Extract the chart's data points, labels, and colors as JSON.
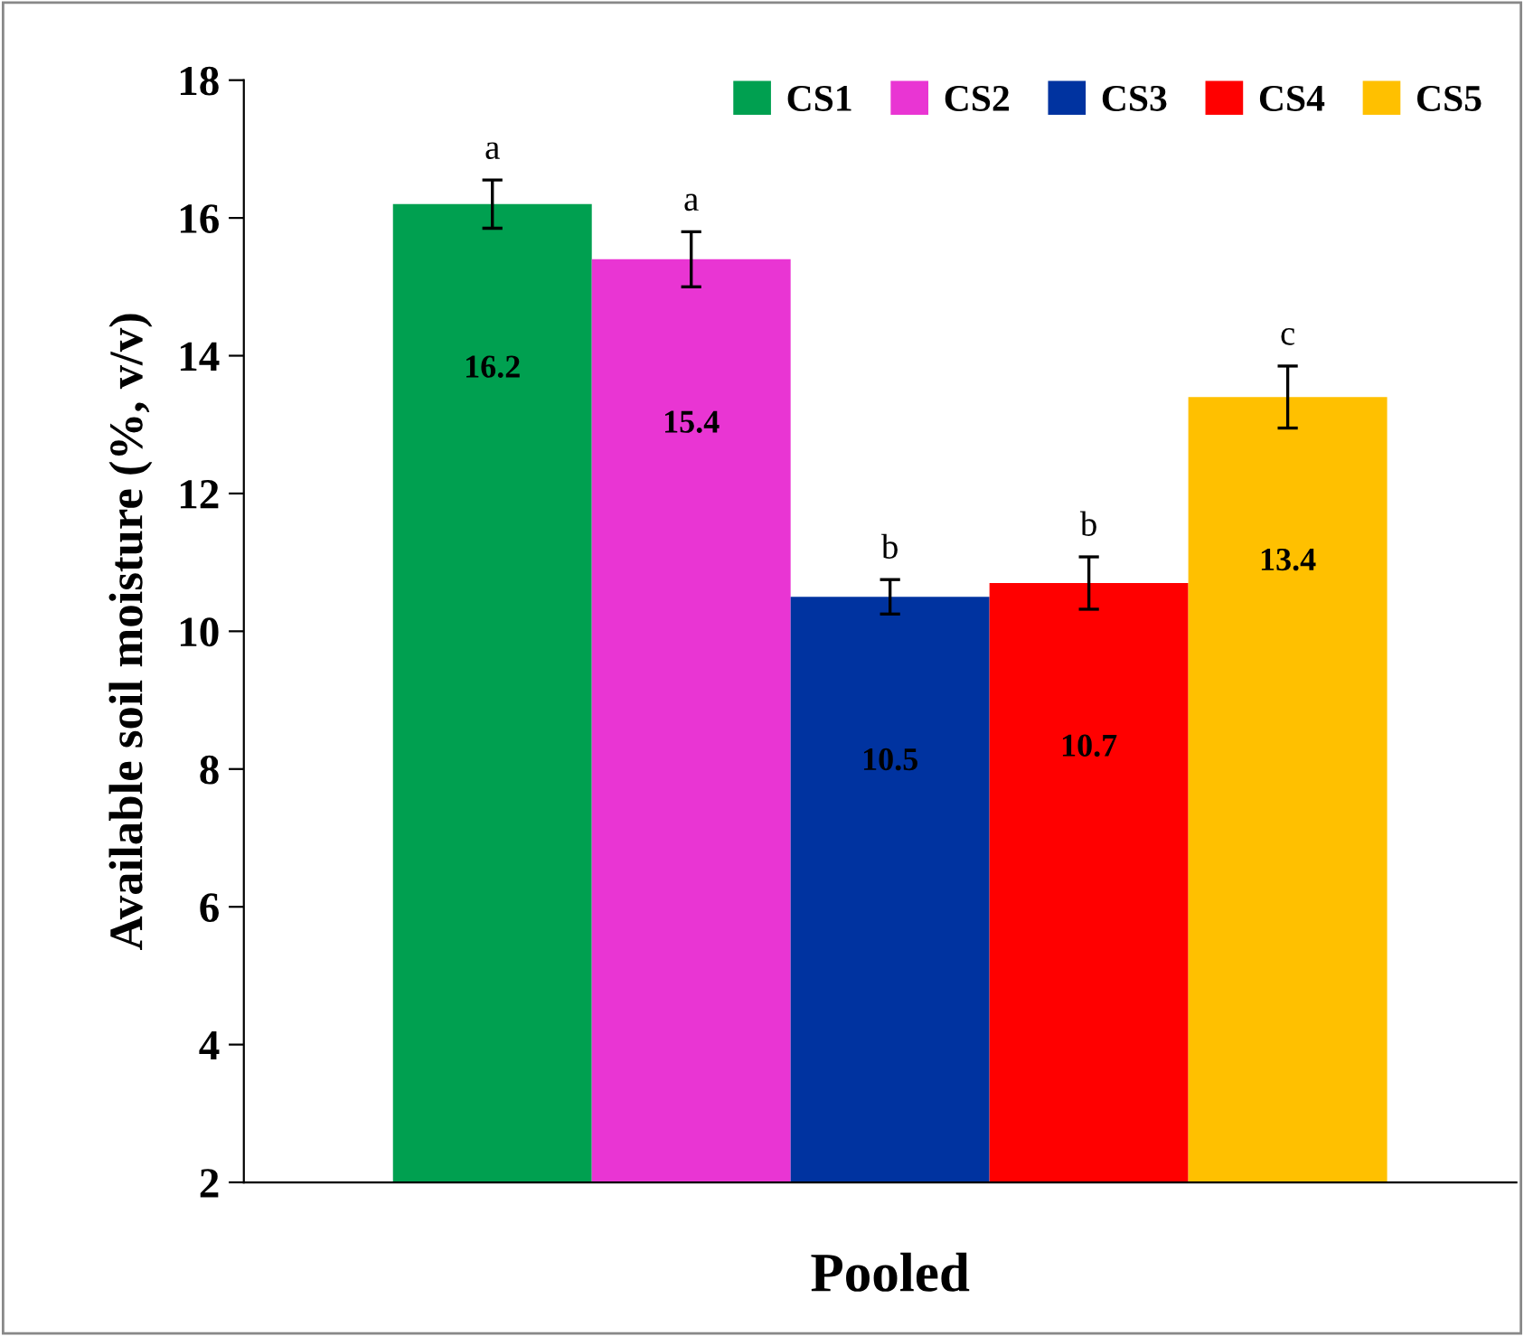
{
  "chart_data": {
    "type": "bar",
    "categories": [
      "Pooled"
    ],
    "series": [
      {
        "name": "CS1",
        "color": "#00a050",
        "values": [
          16.2
        ],
        "errors": [
          0.35
        ],
        "value_labels": [
          "16.2"
        ]
      },
      {
        "name": "CS2",
        "color": "#e935d3",
        "values": [
          15.4
        ],
        "errors": [
          0.4
        ],
        "value_labels": [
          "15.4"
        ]
      },
      {
        "name": "CS3",
        "color": "#0033a0",
        "values": [
          10.5
        ],
        "errors": [
          0.25
        ],
        "value_labels": [
          "10.5"
        ]
      },
      {
        "name": "CS4",
        "color": "#ff0000",
        "values": [
          10.7
        ],
        "errors": [
          0.38
        ],
        "value_labels": [
          "10.7"
        ]
      },
      {
        "name": "CS5",
        "color": "#ffc000",
        "values": [
          13.4
        ],
        "errors": [
          0.45
        ],
        "value_labels": [
          "13.4"
        ]
      }
    ],
    "ylabel": "Available soil moisture (%, v/v)",
    "annotations": [
      "a",
      "a",
      "b",
      "b",
      "c"
    ],
    "ylim": [
      2,
      18
    ],
    "yticks": [
      2,
      4,
      6,
      8,
      10,
      12,
      14,
      16,
      18
    ],
    "grid": false,
    "legend": "top right"
  }
}
